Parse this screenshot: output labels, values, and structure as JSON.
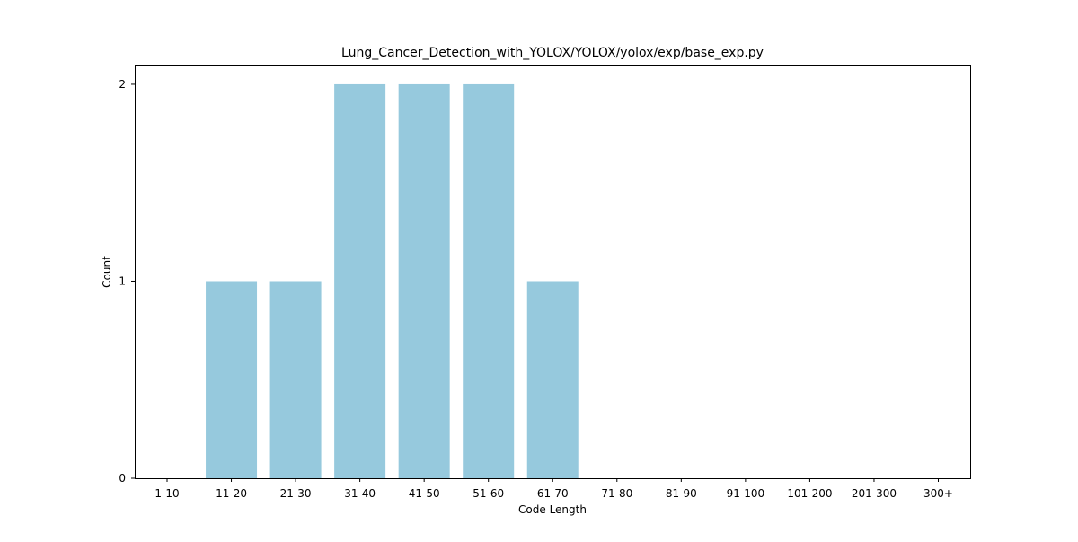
{
  "chart_data": {
    "type": "bar",
    "title": "Lung_Cancer_Detection_with_YOLOX/YOLOX/yolox/exp/base_exp.py",
    "xlabel": "Code Length",
    "ylabel": "Count",
    "categories": [
      "1-10",
      "11-20",
      "21-30",
      "31-40",
      "41-50",
      "51-60",
      "61-70",
      "71-80",
      "81-90",
      "91-100",
      "101-200",
      "201-300",
      "300+"
    ],
    "values": [
      0,
      1,
      1,
      2,
      2,
      2,
      1,
      0,
      0,
      0,
      0,
      0,
      0
    ],
    "ylim": [
      0,
      2.1
    ],
    "yticks": [
      0,
      1,
      2
    ],
    "grid": false,
    "bar_color": "#96c9dd"
  }
}
